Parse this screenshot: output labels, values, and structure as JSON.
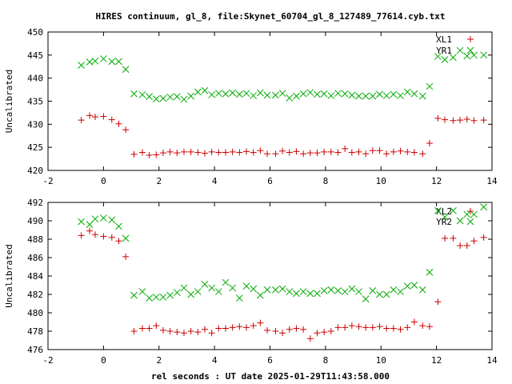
{
  "chart_data": [
    {
      "type": "scatter",
      "title": "HIRES continuum, gl_8, file:Skynet_60704_gl_8_127489_77614.cyb.txt",
      "xlabel": "",
      "ylabel": "Uncalibrated",
      "xlim": [
        -2,
        14
      ],
      "ylim": [
        420,
        450
      ],
      "xticks": [
        -2,
        0,
        2,
        4,
        6,
        8,
        10,
        12,
        14
      ],
      "yticks": [
        420,
        425,
        430,
        435,
        440,
        445,
        450
      ],
      "grid": false,
      "legend_position": "top-right",
      "series": [
        {
          "name": "XL1",
          "marker": "plus",
          "color": "#cc0000",
          "points": [
            [
              -0.8,
              430.9
            ],
            [
              -0.5,
              431.9
            ],
            [
              -0.3,
              431.6
            ],
            [
              0.0,
              431.7
            ],
            [
              0.3,
              431.0
            ],
            [
              0.55,
              430.1
            ],
            [
              0.8,
              428.8
            ],
            [
              1.1,
              423.5
            ],
            [
              1.4,
              423.9
            ],
            [
              1.65,
              423.3
            ],
            [
              1.9,
              423.4
            ],
            [
              2.15,
              423.8
            ],
            [
              2.4,
              424.0
            ],
            [
              2.65,
              423.8
            ],
            [
              2.9,
              424.0
            ],
            [
              3.15,
              424.0
            ],
            [
              3.4,
              423.9
            ],
            [
              3.65,
              423.7
            ],
            [
              3.9,
              424.0
            ],
            [
              4.15,
              423.9
            ],
            [
              4.4,
              423.9
            ],
            [
              4.65,
              424.0
            ],
            [
              4.9,
              423.9
            ],
            [
              5.15,
              424.1
            ],
            [
              5.4,
              423.9
            ],
            [
              5.65,
              424.3
            ],
            [
              5.9,
              423.6
            ],
            [
              6.2,
              423.6
            ],
            [
              6.45,
              424.2
            ],
            [
              6.7,
              423.9
            ],
            [
              6.95,
              424.1
            ],
            [
              7.2,
              423.6
            ],
            [
              7.45,
              423.8
            ],
            [
              7.7,
              423.8
            ],
            [
              7.95,
              424.0
            ],
            [
              8.2,
              424.0
            ],
            [
              8.45,
              423.9
            ],
            [
              8.7,
              424.7
            ],
            [
              8.95,
              423.9
            ],
            [
              9.2,
              424.0
            ],
            [
              9.45,
              423.6
            ],
            [
              9.7,
              424.3
            ],
            [
              9.95,
              424.3
            ],
            [
              10.2,
              423.6
            ],
            [
              10.45,
              424.0
            ],
            [
              10.7,
              424.2
            ],
            [
              10.95,
              424.0
            ],
            [
              11.2,
              423.9
            ],
            [
              11.5,
              423.6
            ],
            [
              11.75,
              425.9
            ],
            [
              12.05,
              431.3
            ],
            [
              12.3,
              431.0
            ],
            [
              12.6,
              430.8
            ],
            [
              12.85,
              430.9
            ],
            [
              13.1,
              431.1
            ],
            [
              13.35,
              430.8
            ],
            [
              13.7,
              430.9
            ]
          ]
        },
        {
          "name": "YR1",
          "marker": "cross",
          "color": "#00aa00",
          "points": [
            [
              -0.8,
              442.8
            ],
            [
              -0.5,
              443.5
            ],
            [
              -0.3,
              443.7
            ],
            [
              0.0,
              444.2
            ],
            [
              0.3,
              443.6
            ],
            [
              0.55,
              443.6
            ],
            [
              0.8,
              441.9
            ],
            [
              1.1,
              436.6
            ],
            [
              1.4,
              436.4
            ],
            [
              1.65,
              436.0
            ],
            [
              1.9,
              435.5
            ],
            [
              2.15,
              435.6
            ],
            [
              2.4,
              435.9
            ],
            [
              2.65,
              436.0
            ],
            [
              2.9,
              435.4
            ],
            [
              3.15,
              436.1
            ],
            [
              3.4,
              437.0
            ],
            [
              3.65,
              437.3
            ],
            [
              3.9,
              436.4
            ],
            [
              4.15,
              436.7
            ],
            [
              4.4,
              436.6
            ],
            [
              4.65,
              436.8
            ],
            [
              4.9,
              436.5
            ],
            [
              5.15,
              436.7
            ],
            [
              5.4,
              436.2
            ],
            [
              5.65,
              436.8
            ],
            [
              5.9,
              436.3
            ],
            [
              6.2,
              436.3
            ],
            [
              6.45,
              436.7
            ],
            [
              6.7,
              435.7
            ],
            [
              6.95,
              436.1
            ],
            [
              7.2,
              436.6
            ],
            [
              7.45,
              436.9
            ],
            [
              7.7,
              436.5
            ],
            [
              7.95,
              436.6
            ],
            [
              8.2,
              436.2
            ],
            [
              8.45,
              436.7
            ],
            [
              8.7,
              436.6
            ],
            [
              8.95,
              436.3
            ],
            [
              9.2,
              436.1
            ],
            [
              9.45,
              436.1
            ],
            [
              9.7,
              436.1
            ],
            [
              9.95,
              436.5
            ],
            [
              10.2,
              436.2
            ],
            [
              10.45,
              436.5
            ],
            [
              10.7,
              436.2
            ],
            [
              10.95,
              437.0
            ],
            [
              11.2,
              436.6
            ],
            [
              11.5,
              436.1
            ],
            [
              11.75,
              438.2
            ],
            [
              12.05,
              444.7
            ],
            [
              12.3,
              444.0
            ],
            [
              12.6,
              444.5
            ],
            [
              12.85,
              446.0
            ],
            [
              13.1,
              444.8
            ],
            [
              13.35,
              445.0
            ],
            [
              13.7,
              445.0
            ]
          ]
        }
      ]
    },
    {
      "type": "scatter",
      "title": "",
      "xlabel": "rel seconds : UT date 2025-01-29T11:43:58.000",
      "ylabel": "Uncalibrated",
      "xlim": [
        -2,
        14
      ],
      "ylim": [
        476,
        492
      ],
      "xticks": [
        -2,
        0,
        2,
        4,
        6,
        8,
        10,
        12,
        14
      ],
      "yticks": [
        476,
        478,
        480,
        482,
        484,
        486,
        488,
        490,
        492
      ],
      "grid": false,
      "legend_position": "top-right",
      "series": [
        {
          "name": "XL2",
          "marker": "plus",
          "color": "#cc0000",
          "points": [
            [
              -0.8,
              488.4
            ],
            [
              -0.5,
              488.9
            ],
            [
              -0.3,
              488.5
            ],
            [
              0.0,
              488.3
            ],
            [
              0.3,
              488.2
            ],
            [
              0.55,
              487.8
            ],
            [
              0.8,
              486.1
            ],
            [
              1.1,
              478.0
            ],
            [
              1.4,
              478.3
            ],
            [
              1.65,
              478.3
            ],
            [
              1.9,
              478.6
            ],
            [
              2.15,
              478.1
            ],
            [
              2.4,
              478.0
            ],
            [
              2.65,
              477.9
            ],
            [
              2.9,
              477.8
            ],
            [
              3.15,
              478.0
            ],
            [
              3.4,
              477.9
            ],
            [
              3.65,
              478.2
            ],
            [
              3.9,
              477.8
            ],
            [
              4.15,
              478.3
            ],
            [
              4.4,
              478.3
            ],
            [
              4.65,
              478.4
            ],
            [
              4.9,
              478.5
            ],
            [
              5.15,
              478.4
            ],
            [
              5.4,
              478.6
            ],
            [
              5.65,
              478.9
            ],
            [
              5.9,
              478.1
            ],
            [
              6.2,
              478.0
            ],
            [
              6.45,
              477.8
            ],
            [
              6.7,
              478.2
            ],
            [
              6.95,
              478.3
            ],
            [
              7.2,
              478.2
            ],
            [
              7.45,
              477.2
            ],
            [
              7.7,
              477.8
            ],
            [
              7.95,
              477.9
            ],
            [
              8.2,
              478.0
            ],
            [
              8.45,
              478.4
            ],
            [
              8.7,
              478.4
            ],
            [
              8.95,
              478.6
            ],
            [
              9.2,
              478.5
            ],
            [
              9.45,
              478.4
            ],
            [
              9.7,
              478.4
            ],
            [
              9.95,
              478.5
            ],
            [
              10.2,
              478.3
            ],
            [
              10.45,
              478.3
            ],
            [
              10.7,
              478.2
            ],
            [
              10.95,
              478.4
            ],
            [
              11.2,
              479.0
            ],
            [
              11.5,
              478.6
            ],
            [
              11.75,
              478.5
            ],
            [
              12.05,
              481.2
            ],
            [
              12.3,
              488.1
            ],
            [
              12.6,
              488.1
            ],
            [
              12.85,
              487.3
            ],
            [
              13.1,
              487.3
            ],
            [
              13.35,
              487.8
            ],
            [
              13.7,
              488.2
            ]
          ]
        },
        {
          "name": "YR2",
          "marker": "cross",
          "color": "#00aa00",
          "points": [
            [
              -0.8,
              489.9
            ],
            [
              -0.5,
              489.6
            ],
            [
              -0.3,
              490.2
            ],
            [
              0.0,
              490.3
            ],
            [
              0.3,
              490.1
            ],
            [
              0.55,
              489.4
            ],
            [
              0.8,
              488.1
            ],
            [
              1.1,
              481.9
            ],
            [
              1.4,
              482.3
            ],
            [
              1.65,
              481.6
            ],
            [
              1.9,
              481.7
            ],
            [
              2.15,
              481.7
            ],
            [
              2.4,
              481.9
            ],
            [
              2.65,
              482.2
            ],
            [
              2.9,
              482.7
            ],
            [
              3.15,
              482.0
            ],
            [
              3.4,
              482.3
            ],
            [
              3.65,
              483.1
            ],
            [
              3.9,
              482.7
            ],
            [
              4.15,
              482.3
            ],
            [
              4.4,
              483.3
            ],
            [
              4.65,
              482.7
            ],
            [
              4.9,
              481.6
            ],
            [
              5.15,
              482.9
            ],
            [
              5.4,
              482.6
            ],
            [
              5.65,
              481.9
            ],
            [
              5.9,
              482.5
            ],
            [
              6.2,
              482.5
            ],
            [
              6.45,
              482.6
            ],
            [
              6.7,
              482.3
            ],
            [
              6.95,
              482.1
            ],
            [
              7.2,
              482.3
            ],
            [
              7.45,
              482.1
            ],
            [
              7.7,
              482.1
            ],
            [
              7.95,
              482.4
            ],
            [
              8.2,
              482.5
            ],
            [
              8.45,
              482.4
            ],
            [
              8.7,
              482.3
            ],
            [
              8.95,
              482.6
            ],
            [
              9.2,
              482.3
            ],
            [
              9.45,
              481.5
            ],
            [
              9.7,
              482.4
            ],
            [
              9.95,
              482.0
            ],
            [
              10.2,
              482.0
            ],
            [
              10.45,
              482.5
            ],
            [
              10.7,
              482.3
            ],
            [
              10.95,
              482.9
            ],
            [
              11.2,
              483.0
            ],
            [
              11.5,
              482.5
            ],
            [
              11.75,
              484.4
            ],
            [
              12.05,
              491.1
            ],
            [
              12.3,
              490.4
            ],
            [
              12.6,
              491.1
            ],
            [
              12.85,
              490.0
            ],
            [
              13.1,
              490.7
            ],
            [
              13.35,
              490.7
            ],
            [
              13.7,
              491.5
            ]
          ]
        }
      ]
    }
  ]
}
